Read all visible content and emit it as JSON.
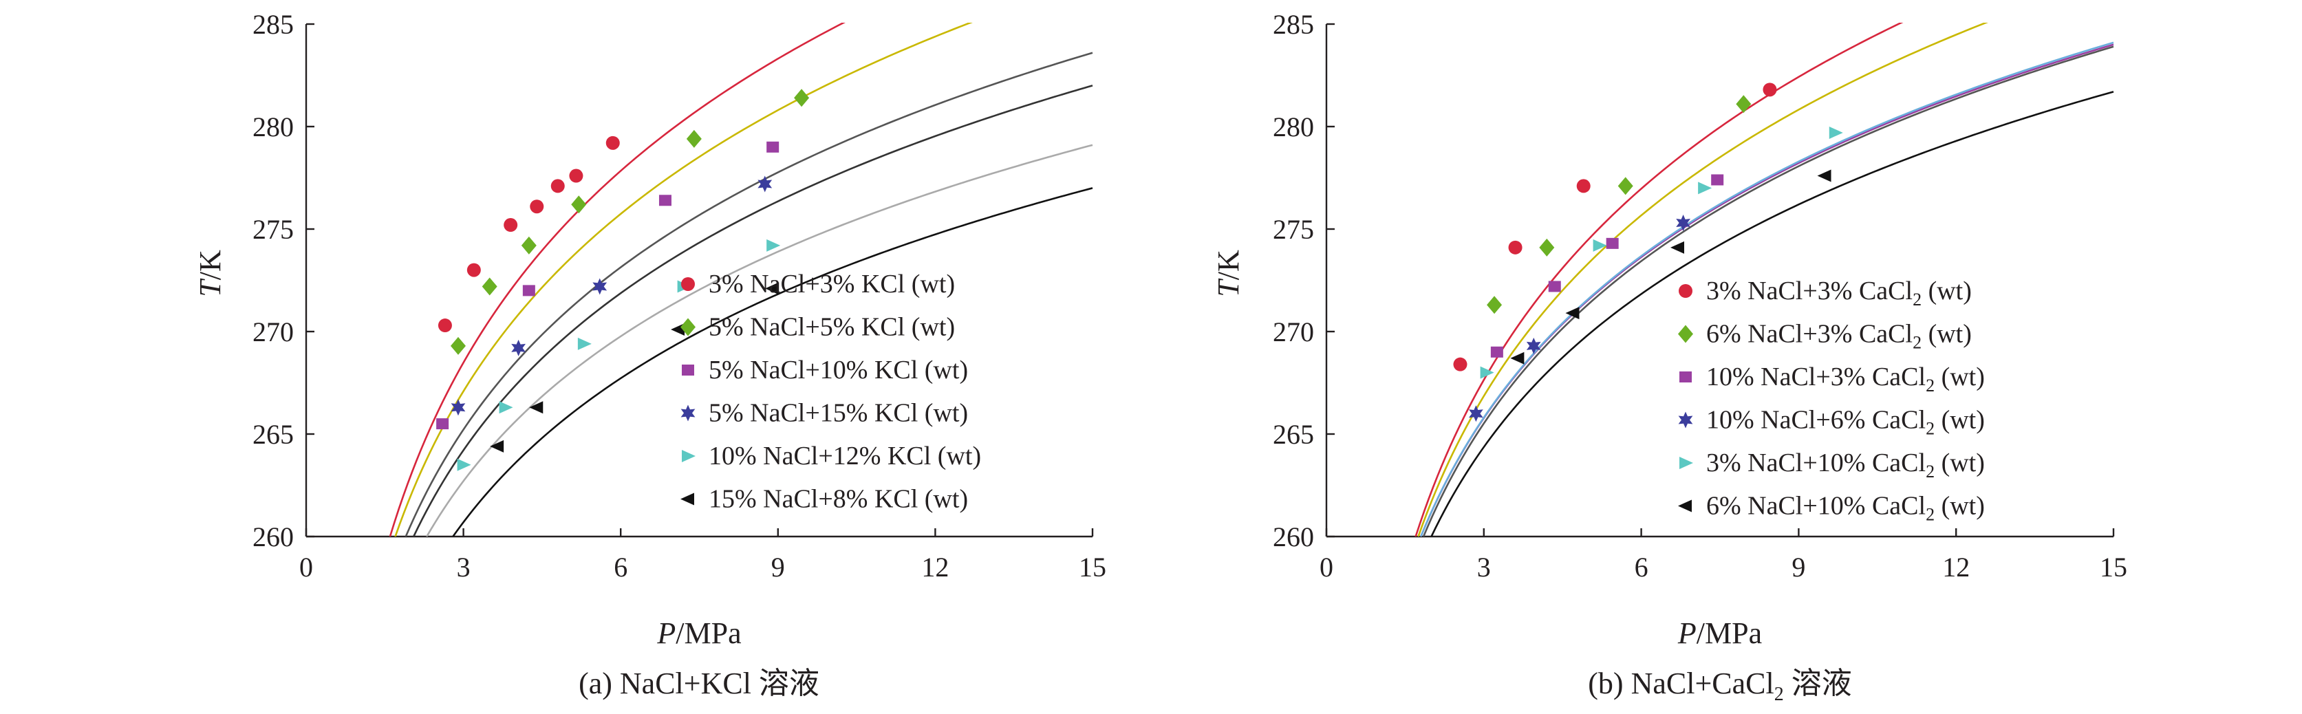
{
  "chart_data": [
    {
      "type": "scatter",
      "xlabel_italic": "P",
      "xlabel_unit": "/MPa",
      "ylabel_italic": "T",
      "ylabel_unit": "/K",
      "caption": "(a) NaCl+KCl 溶液",
      "xlim": [
        0,
        15
      ],
      "ylim": [
        260,
        285
      ],
      "xticks": [
        0,
        3,
        6,
        9,
        12,
        15
      ],
      "yticks": [
        260,
        265,
        270,
        275,
        280,
        285
      ],
      "legend_position": "bottom-right",
      "series": [
        {
          "name": "3% NaCl+3% KCl (wt)",
          "name_parts": [
            "3% NaCl+3% KCl (wt)"
          ],
          "color": "#d7263d",
          "marker": "circle",
          "curve_color": "#d7263d",
          "points": [
            [
              2.65,
              270.3
            ],
            [
              3.2,
              273.0
            ],
            [
              3.9,
              275.2
            ],
            [
              4.4,
              276.1
            ],
            [
              4.8,
              277.1
            ],
            [
              5.15,
              277.6
            ],
            [
              5.85,
              279.2
            ]
          ],
          "curve": {
            "p0": 1.6,
            "p1": 10.2,
            "t1": 285
          }
        },
        {
          "name": "5% NaCl+5% KCl (wt)",
          "name_parts": [
            "5% NaCl+5% KCl (wt)"
          ],
          "color": "#6ab023",
          "marker": "diamond",
          "curve_color": "#c9b800",
          "points": [
            [
              2.9,
              269.3
            ],
            [
              3.5,
              272.2
            ],
            [
              4.25,
              274.2
            ],
            [
              5.2,
              276.2
            ],
            [
              7.4,
              279.4
            ],
            [
              9.45,
              281.4
            ]
          ],
          "curve": {
            "p0": 1.7,
            "p1": 12.6,
            "t1": 285
          }
        },
        {
          "name": "5% NaCl+10% KCl (wt)",
          "name_parts": [
            "5% NaCl+10% KCl (wt)"
          ],
          "color": "#9a3fa1",
          "marker": "square",
          "curve_color": "#555555",
          "points": [
            [
              2.6,
              265.5
            ],
            [
              4.25,
              272.0
            ],
            [
              6.85,
              276.4
            ],
            [
              8.9,
              279.0
            ]
          ],
          "curve": {
            "p0": 1.9,
            "p1": 15,
            "t1": 283.6
          }
        },
        {
          "name": "5% NaCl+15% KCl (wt)",
          "name_parts": [
            "5% NaCl+15% KCl (wt)"
          ],
          "color": "#3b3d9c",
          "marker": "star",
          "curve_color": "#333333",
          "points": [
            [
              2.9,
              266.3
            ],
            [
              4.05,
              269.2
            ],
            [
              5.6,
              272.2
            ],
            [
              8.75,
              277.2
            ]
          ],
          "curve": {
            "p0": 2.05,
            "p1": 15,
            "t1": 282.0
          }
        },
        {
          "name": "10% NaCl+12% KCl (wt)",
          "name_parts": [
            "10% NaCl+12% KCl (wt)"
          ],
          "color": "#5cc8c2",
          "marker": "triangle-right",
          "curve_color": "#aaaaaa",
          "points": [
            [
              3.0,
              263.5
            ],
            [
              3.8,
              266.3
            ],
            [
              5.3,
              269.4
            ],
            [
              7.2,
              272.2
            ],
            [
              8.9,
              274.2
            ]
          ],
          "curve": {
            "p0": 2.3,
            "p1": 15,
            "t1": 279.1
          }
        },
        {
          "name": "15% NaCl+8% KCl (wt)",
          "name_parts": [
            "15% NaCl+8% KCl (wt)"
          ],
          "color": "#111111",
          "marker": "triangle-left",
          "curve_color": "#111111",
          "points": [
            [
              3.65,
              264.4
            ],
            [
              4.4,
              266.3
            ],
            [
              7.1,
              270.1
            ],
            [
              8.9,
              272.1
            ]
          ],
          "curve": {
            "p0": 2.8,
            "p1": 15,
            "t1": 277.0
          }
        }
      ]
    },
    {
      "type": "scatter",
      "xlabel_italic": "P",
      "xlabel_unit": "/MPa",
      "ylabel_italic": "T",
      "ylabel_unit": "/K",
      "caption_main": "(b) NaCl+CaCl",
      "caption_sub": "2",
      "caption_tail": " 溶液",
      "xlim": [
        0,
        15
      ],
      "ylim": [
        260,
        285
      ],
      "xticks": [
        0,
        3,
        6,
        9,
        12,
        15
      ],
      "yticks": [
        260,
        265,
        270,
        275,
        280,
        285
      ],
      "legend_position": "bottom-right",
      "series": [
        {
          "name": "3% NaCl+3% CaCl2 (wt)",
          "name_parts": [
            "3% NaCl+3% CaCl",
            "2",
            " (wt)"
          ],
          "color": "#d7263d",
          "marker": "circle",
          "curve_color": "#d7263d",
          "points": [
            [
              2.55,
              268.4
            ],
            [
              3.6,
              274.1
            ],
            [
              4.9,
              277.1
            ],
            [
              8.45,
              281.8
            ]
          ],
          "curve": {
            "p0": 1.7,
            "p1": 10.9,
            "t1": 285
          }
        },
        {
          "name": "6% NaCl+3% CaCl2 (wt)",
          "name_parts": [
            "6% NaCl+3% CaCl",
            "2",
            " (wt)"
          ],
          "color": "#6ab023",
          "marker": "diamond",
          "curve_color": "#c9b800",
          "points": [
            [
              3.2,
              271.3
            ],
            [
              4.2,
              274.1
            ],
            [
              5.7,
              277.1
            ],
            [
              7.95,
              281.1
            ]
          ],
          "curve": {
            "p0": 1.75,
            "p1": 12.5,
            "t1": 285
          }
        },
        {
          "name": "10% NaCl+3% CaCl2 (wt)",
          "name_parts": [
            "10% NaCl+3% CaCl",
            "2",
            " (wt)"
          ],
          "color": "#9a3fa1",
          "marker": "square",
          "curve_color": "#9a3fa1",
          "points": [
            [
              3.25,
              269.0
            ],
            [
              4.35,
              272.2
            ],
            [
              5.45,
              274.3
            ],
            [
              7.45,
              277.4
            ]
          ],
          "curve": {
            "p0": 1.8,
            "p1": 15,
            "t1": 284.0
          }
        },
        {
          "name": "10% NaCl+6% CaCl2 (wt)",
          "name_parts": [
            "10% NaCl+6% CaCl",
            "2",
            " (wt)"
          ],
          "color": "#3b3d9c",
          "marker": "star",
          "curve_color": "#555555",
          "points": [
            [
              2.85,
              266.0
            ],
            [
              3.95,
              269.3
            ],
            [
              6.8,
              275.3
            ]
          ],
          "curve": {
            "p0": 1.85,
            "p1": 15,
            "t1": 283.9
          }
        },
        {
          "name": "3% NaCl+10% CaCl2 (wt)",
          "name_parts": [
            "3% NaCl+10% CaCl",
            "2",
            " (wt)"
          ],
          "color": "#5cc8c2",
          "marker": "triangle-right",
          "curve_color": "#6aaedc",
          "points": [
            [
              3.05,
              268.0
            ],
            [
              5.2,
              274.2
            ],
            [
              7.2,
              277.0
            ],
            [
              9.7,
              279.7
            ]
          ],
          "curve": {
            "p0": 1.8,
            "p1": 15,
            "t1": 284.1
          }
        },
        {
          "name": "6% NaCl+10% CaCl2 (wt)",
          "name_parts": [
            "6% NaCl+10% CaCl",
            "2",
            " (wt)"
          ],
          "color": "#111111",
          "marker": "triangle-left",
          "curve_color": "#111111",
          "points": [
            [
              3.65,
              268.7
            ],
            [
              4.7,
              270.9
            ],
            [
              6.7,
              274.1
            ],
            [
              9.5,
              277.6
            ]
          ],
          "curve": {
            "p0": 2.0,
            "p1": 15,
            "t1": 281.7
          }
        }
      ]
    }
  ]
}
